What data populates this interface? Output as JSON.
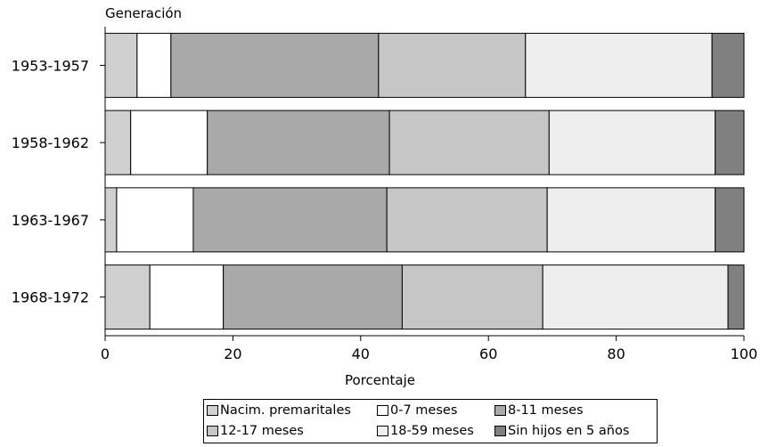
{
  "chart_data": {
    "type": "bar",
    "orientation": "horizontal",
    "stacked": true,
    "ylabel": "Generación",
    "xlabel": "Porcentaje",
    "xlim": [
      0,
      100
    ],
    "xticks": [
      0,
      20,
      40,
      60,
      80,
      100
    ],
    "grid": false,
    "legend_position": "bottom",
    "categories": [
      "1953-1957",
      "1958-1962",
      "1963-1967",
      "1968-1972"
    ],
    "series": [
      {
        "name": "Nacim. premaritales",
        "color": "#d0d0d0",
        "values": [
          5.0,
          4.0,
          1.8,
          7.0
        ]
      },
      {
        "name": "0-7 meses",
        "color": "#ffffff",
        "values": [
          5.3,
          12.0,
          12.0,
          11.5
        ]
      },
      {
        "name": "8-11 meses",
        "color": "#a9a9a9",
        "values": [
          32.5,
          28.5,
          30.3,
          28.0
        ]
      },
      {
        "name": "12-17 meses",
        "color": "#c6c6c6",
        "values": [
          23.0,
          25.0,
          25.1,
          22.0
        ]
      },
      {
        "name": "18-59 meses",
        "color": "#eeeeee",
        "values": [
          29.2,
          26.0,
          26.3,
          29.0
        ]
      },
      {
        "name": "Sin hijos en 5 años",
        "color": "#808080",
        "values": [
          5.0,
          4.5,
          4.5,
          2.5
        ]
      }
    ]
  }
}
